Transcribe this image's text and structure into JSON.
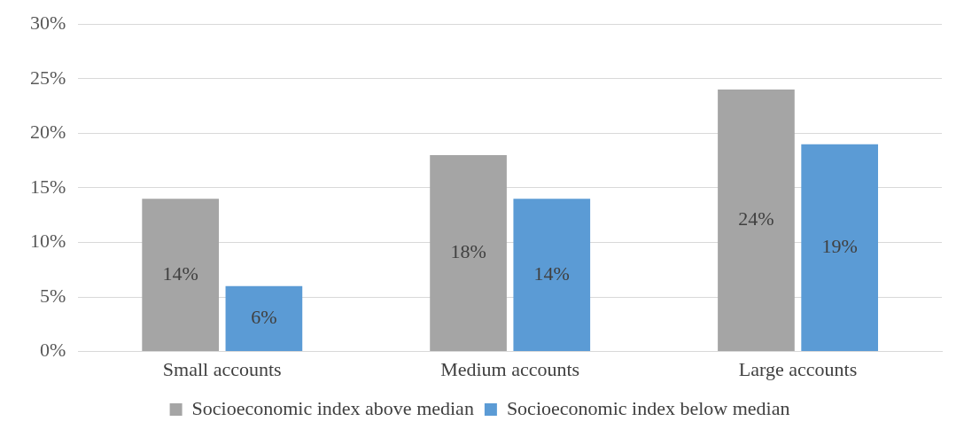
{
  "chart_data": {
    "type": "bar",
    "categories": [
      "Small accounts",
      "Medium accounts",
      "Large accounts"
    ],
    "series": [
      {
        "name": "Socioeconomic index above median",
        "color": "#a5a5a5",
        "values": [
          14,
          18,
          24
        ],
        "value_labels": [
          "14%",
          "18%",
          "24%"
        ]
      },
      {
        "name": "Socioeconomic index below median",
        "color": "#5b9bd5",
        "values": [
          6,
          14,
          19
        ],
        "value_labels": [
          "6%",
          "14%",
          "19%"
        ]
      }
    ],
    "ylim": [
      0,
      30
    ],
    "yticks": [
      {
        "value": 0,
        "label": "0%"
      },
      {
        "value": 5,
        "label": "5%"
      },
      {
        "value": 10,
        "label": "10%"
      },
      {
        "value": 15,
        "label": "15%"
      },
      {
        "value": 20,
        "label": "20%"
      },
      {
        "value": 25,
        "label": "25%"
      },
      {
        "value": 30,
        "label": "30%"
      }
    ],
    "grid": "y",
    "legend": "bottom"
  }
}
